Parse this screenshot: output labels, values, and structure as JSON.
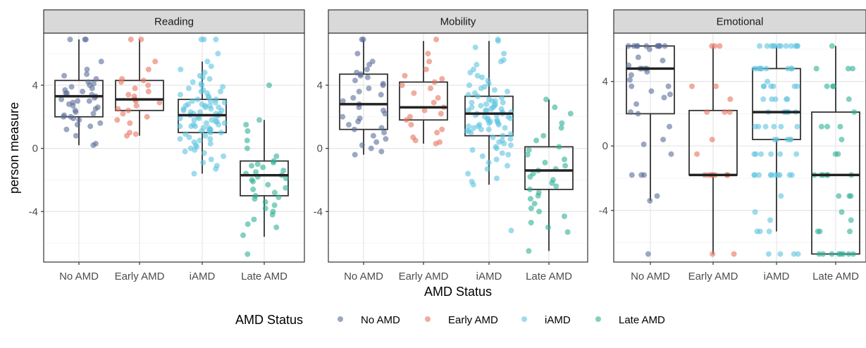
{
  "chart_data": {
    "type": "scatter",
    "subtype": "faceted boxplot with jittered points",
    "xlabel": "AMD Status",
    "ylabel": "person measure",
    "categories": [
      "No AMD",
      "Early AMD",
      "iAMD",
      "Late AMD"
    ],
    "colors": {
      "No AMD": "#5a6d99",
      "Early AMD": "#e8735f",
      "iAMD": "#5ec3e0",
      "Late AMD": "#2fb196"
    },
    "grid": true,
    "legend": {
      "title": "AMD Status",
      "position": "bottom",
      "entries": [
        "No AMD",
        "Early AMD",
        "iAMD",
        "Late AMD"
      ]
    },
    "facets": [
      {
        "title": "Reading",
        "ylim": [
          -7.2,
          7.3
        ],
        "yticks": [
          4,
          0,
          -4
        ],
        "ytick_labels": [
          "4",
          "0",
          "-4"
        ],
        "boxes": [
          {
            "category": "No AMD",
            "q1": 2.0,
            "median": 3.3,
            "q3": 4.3,
            "whisker_low": 0.2,
            "whisker_high": 6.9
          },
          {
            "category": "Early AMD",
            "q1": 2.4,
            "median": 3.1,
            "q3": 4.3,
            "whisker_low": 0.8,
            "whisker_high": 6.9
          },
          {
            "category": "iAMD",
            "q1": 1.0,
            "median": 2.1,
            "q3": 3.1,
            "whisker_low": -1.6,
            "whisker_high": 5.5
          },
          {
            "category": "Late AMD",
            "q1": -3.0,
            "median": -1.7,
            "q3": -0.8,
            "whisker_low": -5.6,
            "whisker_high": 1.8
          }
        ],
        "points": {
          "No AMD": [
            6.9,
            6.9,
            6.9,
            5.5,
            5.0,
            4.7,
            4.6,
            4.4,
            4.2,
            4.1,
            4.0,
            3.9,
            3.8,
            3.7,
            3.6,
            3.5,
            3.5,
            3.4,
            3.3,
            3.2,
            3.1,
            3.0,
            3.0,
            2.9,
            2.8,
            2.7,
            2.6,
            2.5,
            2.4,
            2.3,
            2.2,
            2.1,
            2.0,
            2.0,
            1.9,
            1.8,
            1.6,
            1.5,
            1.4,
            1.2,
            0.8,
            0.3,
            0.2
          ],
          "Early AMD": [
            6.9,
            6.9,
            5.5,
            5.0,
            4.4,
            4.3,
            4.2,
            4.0,
            3.8,
            3.6,
            3.4,
            3.3,
            3.1,
            3.0,
            2.9,
            2.7,
            2.5,
            2.4,
            2.2,
            2.0,
            1.8,
            1.6,
            1.0,
            0.9,
            0.8
          ],
          "iAMD": [
            6.9,
            6.9,
            6.9,
            6.0,
            5.5,
            5.2,
            5.0,
            4.8,
            4.6,
            4.5,
            4.4,
            4.2,
            4.0,
            3.9,
            3.8,
            3.7,
            3.6,
            3.5,
            3.4,
            3.3,
            3.2,
            3.1,
            3.1,
            3.0,
            3.0,
            2.9,
            2.9,
            2.8,
            2.8,
            2.7,
            2.7,
            2.6,
            2.6,
            2.5,
            2.5,
            2.4,
            2.4,
            2.3,
            2.3,
            2.2,
            2.2,
            2.1,
            2.1,
            2.0,
            2.0,
            1.9,
            1.9,
            1.8,
            1.8,
            1.7,
            1.7,
            1.6,
            1.6,
            1.5,
            1.5,
            1.4,
            1.4,
            1.3,
            1.3,
            1.2,
            1.2,
            1.1,
            1.1,
            1.0,
            1.0,
            0.9,
            0.8,
            0.7,
            0.6,
            0.5,
            0.4,
            0.3,
            0.2,
            0.1,
            0.0,
            -0.1,
            -0.2,
            -0.3,
            -0.5,
            -0.7,
            -0.9,
            -1.1,
            -1.3,
            -1.6,
            4.1,
            3.6,
            2.7,
            2.2,
            1.4,
            0.6
          ],
          "Late AMD": [
            4.0,
            1.8,
            1.5,
            1.1,
            0.5,
            0.0,
            -0.5,
            -0.8,
            -0.9,
            -1.0,
            -1.1,
            -1.2,
            -1.4,
            -1.5,
            -1.6,
            -1.7,
            -1.8,
            -1.9,
            -2.0,
            -2.1,
            -2.3,
            -2.5,
            -2.6,
            -2.8,
            -3.0,
            -3.1,
            -3.2,
            -3.4,
            -3.6,
            -3.8,
            -4.0,
            -4.2,
            -4.5,
            -4.8,
            -5.0,
            -5.5,
            -6.7
          ]
        }
      },
      {
        "title": "Mobility",
        "ylim": [
          -7.2,
          7.3
        ],
        "yticks": [
          4,
          0,
          -4
        ],
        "ytick_labels": [
          "4",
          "0",
          "-4"
        ],
        "boxes": [
          {
            "category": "No AMD",
            "q1": 1.2,
            "median": 2.8,
            "q3": 4.7,
            "whisker_low": -0.4,
            "whisker_high": 6.9
          },
          {
            "category": "Early AMD",
            "q1": 1.8,
            "median": 2.6,
            "q3": 4.2,
            "whisker_low": 0.3,
            "whisker_high": 6.8
          },
          {
            "category": "iAMD",
            "q1": 0.8,
            "median": 2.2,
            "q3": 3.3,
            "whisker_low": -2.3,
            "whisker_high": 6.8
          },
          {
            "category": "Late AMD",
            "q1": -2.6,
            "median": -1.4,
            "q3": 0.1,
            "whisker_low": -6.5,
            "whisker_high": 3.1
          }
        ],
        "points": {
          "No AMD": [
            6.9,
            6.9,
            6.0,
            5.5,
            5.3,
            5.0,
            4.8,
            4.7,
            4.6,
            4.5,
            4.3,
            4.1,
            4.0,
            3.8,
            3.6,
            3.4,
            3.2,
            3.0,
            2.8,
            2.6,
            2.4,
            2.2,
            2.0,
            1.9,
            1.7,
            1.5,
            1.3,
            1.2,
            1.0,
            0.8,
            0.6,
            0.4,
            0.2,
            0.0,
            -0.2,
            -0.4
          ],
          "Early AMD": [
            6.9,
            6.0,
            5.5,
            5.0,
            4.6,
            4.4,
            4.2,
            4.0,
            3.8,
            3.5,
            3.2,
            2.9,
            2.6,
            2.4,
            2.2,
            2.0,
            1.8,
            1.5,
            1.2,
            1.0,
            0.7,
            0.5,
            0.4,
            0.3
          ],
          "iAMD": [
            6.9,
            6.8,
            6.4,
            6.0,
            5.6,
            5.5,
            5.3,
            5.0,
            4.8,
            4.6,
            4.5,
            4.3,
            4.1,
            4.0,
            3.8,
            3.7,
            3.6,
            3.5,
            3.4,
            3.3,
            3.2,
            3.1,
            3.0,
            3.0,
            2.9,
            2.9,
            2.8,
            2.8,
            2.7,
            2.7,
            2.6,
            2.6,
            2.5,
            2.5,
            2.4,
            2.4,
            2.3,
            2.3,
            2.2,
            2.2,
            2.1,
            2.1,
            2.0,
            2.0,
            1.9,
            1.9,
            1.8,
            1.8,
            1.7,
            1.7,
            1.6,
            1.6,
            1.5,
            1.5,
            1.4,
            1.4,
            1.3,
            1.3,
            1.2,
            1.2,
            1.1,
            1.0,
            0.9,
            0.8,
            0.7,
            0.6,
            0.5,
            0.4,
            0.3,
            0.2,
            0.1,
            0.0,
            -0.1,
            -0.3,
            -0.5,
            -0.7,
            -0.9,
            -1.1,
            -1.3,
            -1.6,
            -1.9,
            -2.1,
            -2.3,
            -5.2,
            3.9,
            2.4,
            1.1,
            -0.4
          ],
          "Late AMD": [
            3.1,
            2.6,
            2.2,
            1.6,
            1.3,
            0.8,
            0.5,
            0.1,
            -0.1,
            -0.4,
            -0.7,
            -0.9,
            -1.1,
            -1.3,
            -1.4,
            -1.6,
            -1.8,
            -2.0,
            -2.2,
            -2.4,
            -2.6,
            -2.8,
            -3.0,
            -3.2,
            -3.5,
            -3.8,
            -4.0,
            -4.3,
            -4.7,
            -5.0,
            -5.3,
            -6.5
          ]
        }
      },
      {
        "title": "Emotional",
        "ylim": [
          -7.2,
          7.0
        ],
        "yticks": [
          4,
          0,
          -4
        ],
        "ytick_labels": [
          "4",
          "0",
          "-4"
        ],
        "boxes": [
          {
            "category": "No AMD",
            "q1": 2.0,
            "median": 4.8,
            "q3": 6.2,
            "whisker_low": -3.4,
            "whisker_high": 6.2
          },
          {
            "category": "Early AMD",
            "q1": -1.8,
            "median": -1.8,
            "q3": 2.2,
            "whisker_low": -6.7,
            "whisker_high": 6.2
          },
          {
            "category": "iAMD",
            "q1": 0.4,
            "median": 2.1,
            "q3": 4.8,
            "whisker_low": -5.3,
            "whisker_high": 6.2
          },
          {
            "category": "Late AMD",
            "q1": -6.7,
            "median": -1.8,
            "q3": 2.1,
            "whisker_low": -6.7,
            "whisker_high": 6.2
          }
        ],
        "points": {
          "No AMD": [
            6.2,
            6.2,
            6.2,
            6.2,
            6.2,
            6.2,
            6.2,
            6.2,
            6.2,
            6.2,
            6.0,
            5.5,
            5.3,
            5.0,
            4.8,
            4.8,
            4.8,
            4.8,
            4.6,
            4.4,
            4.1,
            3.7,
            3.7,
            3.4,
            3.2,
            3.0,
            2.6,
            2.1,
            2.0,
            1.2,
            0.4,
            0.1,
            -0.5,
            -1.8,
            -1.8,
            -1.8,
            -3.1,
            -3.4,
            -6.7
          ],
          "Early AMD": [
            6.2,
            6.2,
            6.2,
            3.7,
            3.7,
            2.9,
            2.1,
            2.1,
            2.1,
            0.4,
            -0.5,
            -1.8,
            -1.8,
            -1.8,
            -1.8,
            -1.8,
            -1.8,
            -1.8,
            -6.7,
            -6.7
          ],
          "iAMD": [
            6.2,
            6.2,
            6.2,
            6.2,
            6.2,
            6.2,
            6.2,
            6.2,
            6.2,
            6.2,
            6.2,
            6.2,
            4.8,
            4.8,
            4.8,
            4.8,
            4.8,
            4.8,
            4.8,
            4.8,
            4.8,
            4.0,
            3.7,
            3.7,
            3.7,
            3.7,
            3.7,
            3.7,
            2.9,
            2.9,
            2.9,
            2.9,
            2.9,
            2.1,
            2.1,
            2.1,
            2.1,
            2.1,
            2.1,
            1.2,
            1.2,
            1.2,
            1.2,
            1.2,
            1.2,
            0.4,
            0.4,
            0.4,
            0.4,
            0.4,
            -0.5,
            -0.5,
            -0.5,
            -0.5,
            -0.5,
            -0.5,
            -1.8,
            -1.8,
            -1.8,
            -1.8,
            -1.8,
            -1.8,
            -1.8,
            -1.8,
            -1.8,
            -1.8,
            -3.1,
            -4.1,
            -4.6,
            -5.3,
            -5.3,
            -5.3,
            -6.7,
            -6.7,
            -6.7,
            -6.7
          ],
          "Late AMD": [
            6.2,
            4.8,
            4.8,
            4.8,
            3.7,
            3.7,
            3.7,
            2.9,
            2.1,
            1.2,
            1.2,
            1.2,
            0.4,
            -0.5,
            -0.5,
            -1.8,
            -1.8,
            -1.8,
            -1.8,
            -1.8,
            -1.8,
            -3.1,
            -3.1,
            -3.1,
            -4.1,
            -4.6,
            -5.3,
            -5.3,
            -5.3,
            -6.7,
            -6.7,
            -6.7,
            -6.7,
            -6.7,
            -6.7,
            -6.7,
            -6.7
          ]
        }
      }
    ]
  }
}
